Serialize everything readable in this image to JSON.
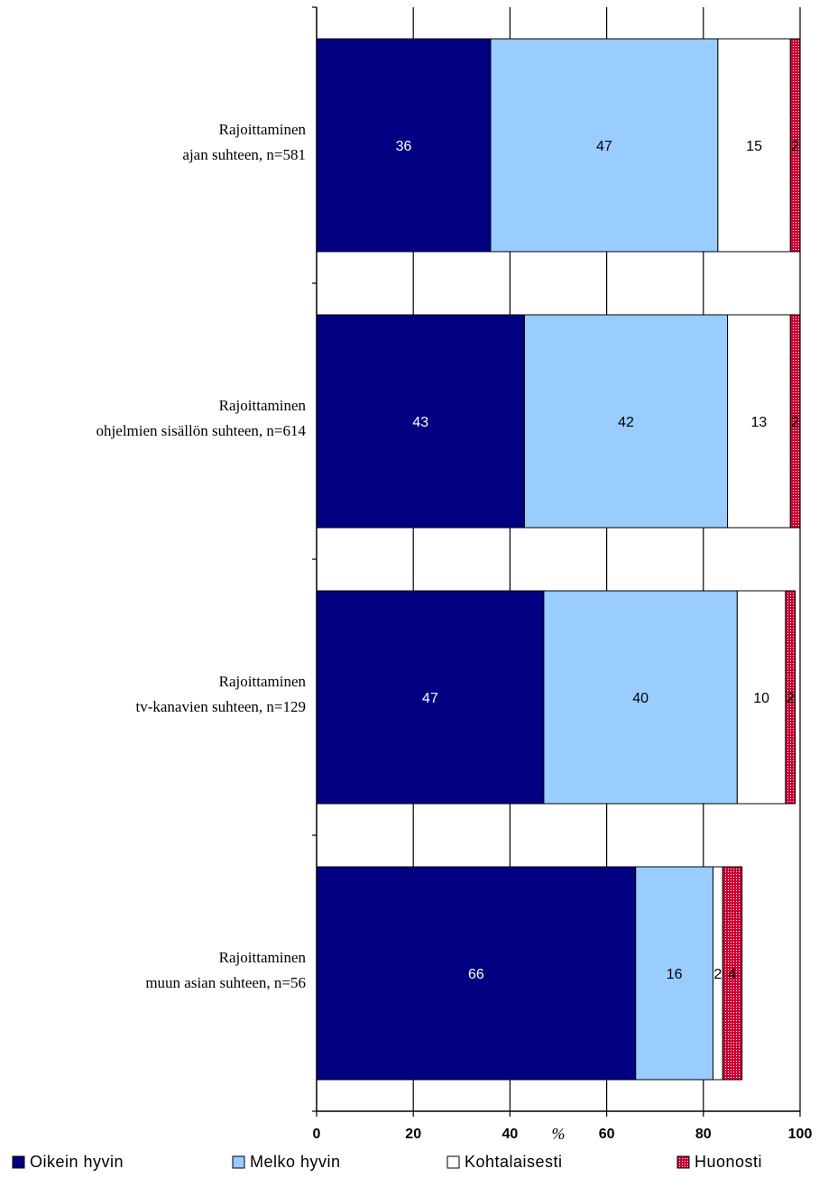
{
  "chart_data": {
    "type": "bar",
    "orientation": "horizontal",
    "stacked": true,
    "categories": [
      [
        "Rajoittaminen",
        "ajan suhteen, n=581"
      ],
      [
        "Rajoittaminen",
        "ohjelmien sisällön suhteen, n=614"
      ],
      [
        "Rajoittaminen",
        "tv-kanavien suhteen, n=129"
      ],
      [
        "Rajoittaminen",
        "muun asian suhteen, n=56"
      ]
    ],
    "series": [
      {
        "name": "Oikein hyvin",
        "color": "#000080",
        "label_color": "#ffffff",
        "values": [
          36,
          43,
          47,
          66
        ]
      },
      {
        "name": "Melko hyvin",
        "color": "#99ccff",
        "label_color": "#000000",
        "values": [
          47,
          42,
          40,
          16
        ]
      },
      {
        "name": "Kohtalaisesti",
        "color": "#ffffff",
        "label_color": "#000000",
        "values": [
          15,
          13,
          10,
          2
        ]
      },
      {
        "name": "Huonosti",
        "color": "#cc0033",
        "label_color": "#000000",
        "pattern": "dotted",
        "values": [
          2,
          2,
          2,
          4
        ]
      }
    ],
    "x_ticks": [
      0,
      20,
      40,
      60,
      80,
      100
    ],
    "xlim": [
      0,
      100
    ],
    "xlabel": "%",
    "grid": true,
    "legend_position": "bottom"
  }
}
